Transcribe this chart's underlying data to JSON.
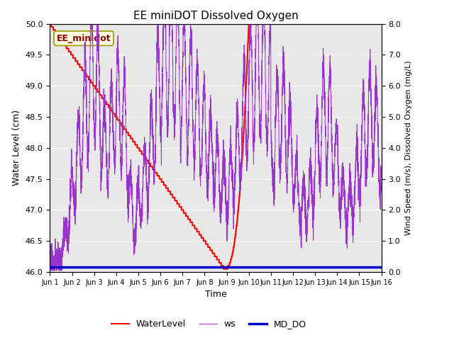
{
  "title": "EE miniDOT Dissolved Oxygen",
  "xlabel": "Time",
  "ylabel_left": "Water Level (cm)",
  "ylabel_right": "Wind Speed (m/s), Dissolved Oxygen (mg/L)",
  "annotation_text": "EE_minidot",
  "xlim_days": [
    0,
    15
  ],
  "ylim_left": [
    46.0,
    50.0
  ],
  "ylim_right": [
    0.0,
    8.0
  ],
  "xtick_labels": [
    "Jun 1",
    "Jun 2",
    "Jun 3",
    "Jun 4",
    "Jun 5",
    "Jun 6",
    "Jun 7",
    "Jun 8",
    "Jun 9",
    "Jun 10",
    "Jun 11",
    "Jun 12",
    "Jun 13",
    "Jun 14",
    "Jun 15",
    "Jun 16"
  ],
  "yticks_left": [
    46.0,
    46.5,
    47.0,
    47.5,
    48.0,
    48.5,
    49.0,
    49.5,
    50.0
  ],
  "yticks_right": [
    0.0,
    1.0,
    2.0,
    3.0,
    4.0,
    5.0,
    6.0,
    7.0,
    8.0
  ],
  "waterlevel_color": "#ff0000",
  "ws_color": "#9933cc",
  "md_do_color": "#0000cc",
  "legend_labels": [
    "WaterLevel",
    "ws",
    "MD_DO"
  ],
  "background_color": "#e8e8e8",
  "grid_color": "#ffffff",
  "fig_width": 6.4,
  "fig_height": 4.8,
  "dpi": 100
}
